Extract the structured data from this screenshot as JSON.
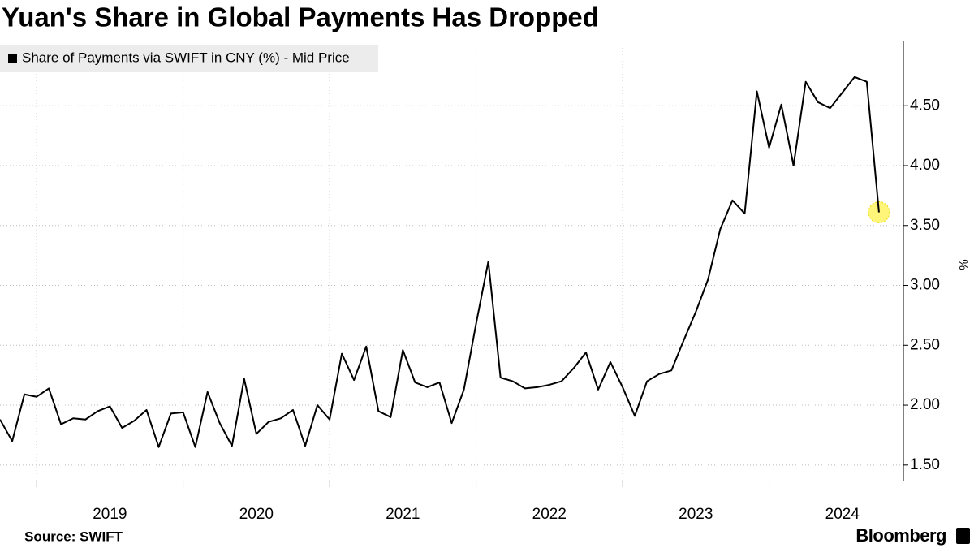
{
  "chart_data": {
    "type": "line",
    "title": "Yuan's Share in Global Payments Has Dropped",
    "source": "Source: SWIFT",
    "brand": "Bloomberg",
    "y_label": "%",
    "x": [
      "2018-10",
      "2018-11",
      "2018-12",
      "2019-01",
      "2019-02",
      "2019-03",
      "2019-04",
      "2019-05",
      "2019-06",
      "2019-07",
      "2019-08",
      "2019-09",
      "2019-10",
      "2019-11",
      "2019-12",
      "2020-01",
      "2020-02",
      "2020-03",
      "2020-04",
      "2020-05",
      "2020-06",
      "2020-07",
      "2020-08",
      "2020-09",
      "2020-10",
      "2020-11",
      "2020-12",
      "2021-01",
      "2021-02",
      "2021-03",
      "2021-04",
      "2021-05",
      "2021-06",
      "2021-07",
      "2021-08",
      "2021-09",
      "2021-10",
      "2021-11",
      "2021-12",
      "2022-01",
      "2022-02",
      "2022-03",
      "2022-04",
      "2022-05",
      "2022-06",
      "2022-07",
      "2022-08",
      "2022-09",
      "2022-10",
      "2022-11",
      "2022-12",
      "2023-01",
      "2023-02",
      "2023-03",
      "2023-04",
      "2023-05",
      "2023-06",
      "2023-07",
      "2023-08",
      "2023-09",
      "2023-10",
      "2023-11",
      "2023-12",
      "2024-01",
      "2024-02",
      "2024-03",
      "2024-04",
      "2024-05",
      "2024-06",
      "2024-07",
      "2024-08",
      "2024-09",
      "2024-10"
    ],
    "series": [
      {
        "name": "Share of Payments via SWIFT in CNY (%) - Mid Price",
        "color": "#000000",
        "values": [
          1.88,
          1.7,
          2.09,
          2.07,
          2.14,
          1.84,
          1.89,
          1.88,
          1.95,
          1.99,
          1.81,
          1.87,
          1.96,
          1.65,
          1.93,
          1.94,
          1.65,
          2.11,
          1.85,
          1.66,
          2.22,
          1.76,
          1.86,
          1.89,
          1.96,
          1.66,
          2.0,
          1.88,
          2.43,
          2.21,
          2.49,
          1.95,
          1.9,
          2.46,
          2.19,
          2.15,
          2.19,
          1.85,
          2.13,
          2.68,
          3.2,
          2.23,
          2.2,
          2.14,
          2.15,
          2.17,
          2.2,
          2.31,
          2.44,
          2.13,
          2.36,
          2.15,
          1.91,
          2.2,
          2.26,
          2.29,
          2.54,
          2.78,
          3.05,
          3.47,
          3.71,
          3.6,
          4.62,
          4.15,
          4.51,
          4.0,
          4.7,
          4.53,
          4.48,
          4.61,
          4.74,
          4.7,
          3.61
        ]
      }
    ],
    "xlim": [
      "2018-10",
      "2024-12"
    ],
    "xticks": [
      2019,
      2020,
      2021,
      2022,
      2023,
      2024
    ],
    "ylim": [
      1.37,
      5.01
    ],
    "yticks": [
      {
        "value": 1.5,
        "label": "1.50"
      },
      {
        "value": 2,
        "label": "2.00"
      },
      {
        "value": 2.5,
        "label": "2.50"
      },
      {
        "value": 3,
        "label": "3.00"
      },
      {
        "value": 3.5,
        "label": "3.50"
      },
      {
        "value": 4,
        "label": "4.00"
      },
      {
        "value": 4.5,
        "label": "4.50"
      }
    ],
    "grid": true,
    "legend": "top-left"
  }
}
